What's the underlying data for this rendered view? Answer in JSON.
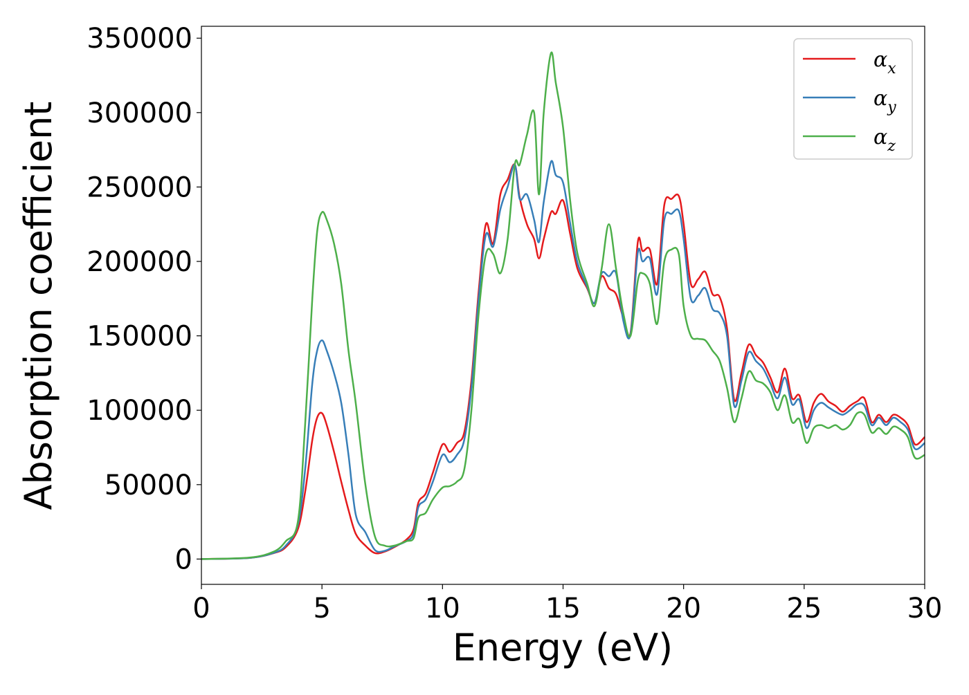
{
  "chart_data": {
    "type": "line",
    "xlabel": "Energy (eV)",
    "ylabel": "Absorption coefficient",
    "xlim": [
      0,
      30
    ],
    "ylim": [
      -17000,
      358000
    ],
    "xticks": [
      0,
      5,
      10,
      15,
      20,
      25,
      30
    ],
    "yticks": [
      0,
      50000,
      100000,
      150000,
      200000,
      250000,
      300000,
      350000
    ],
    "grid": false,
    "legend_position": "top-right",
    "series": [
      {
        "name": "α",
        "subscript": "x",
        "color": "#e41a1c",
        "x": [
          0,
          2,
          3,
          3.5,
          4,
          4.3,
          4.6,
          4.8,
          5.0,
          5.2,
          5.5,
          5.8,
          6.1,
          6.4,
          6.8,
          7.2,
          7.6,
          8.0,
          8.5,
          8.8,
          9.0,
          9.3,
          9.6,
          10.0,
          10.3,
          10.6,
          10.9,
          11.2,
          11.5,
          11.8,
          12.1,
          12.4,
          12.7,
          13.0,
          13.2,
          13.5,
          13.8,
          14.0,
          14.2,
          14.5,
          14.7,
          15.0,
          15.3,
          15.6,
          16.0,
          16.3,
          16.6,
          16.9,
          17.2,
          17.5,
          17.8,
          18.1,
          18.3,
          18.6,
          18.9,
          19.2,
          19.5,
          19.8,
          20.0,
          20.3,
          20.6,
          20.9,
          21.2,
          21.5,
          21.8,
          22.1,
          22.4,
          22.7,
          23.0,
          23.3,
          23.6,
          23.9,
          24.2,
          24.5,
          24.8,
          25.1,
          25.4,
          25.7,
          26.0,
          26.3,
          26.6,
          26.9,
          27.2,
          27.5,
          27.8,
          28.1,
          28.4,
          28.7,
          29.0,
          29.3,
          29.6,
          30.0
        ],
        "y": [
          0,
          800,
          4000,
          8000,
          20000,
          45000,
          80000,
          95000,
          98000,
          90000,
          72000,
          52000,
          33000,
          17000,
          9000,
          4000,
          5000,
          8000,
          13000,
          20000,
          38000,
          44000,
          58000,
          77000,
          72000,
          78000,
          85000,
          120000,
          180000,
          225000,
          212000,
          245000,
          255000,
          265000,
          243000,
          225000,
          215000,
          202000,
          215000,
          233000,
          232000,
          241000,
          218000,
          195000,
          182000,
          172000,
          190000,
          182000,
          178000,
          162000,
          152000,
          213000,
          207000,
          208000,
          185000,
          238000,
          242000,
          244000,
          225000,
          185000,
          188000,
          193000,
          178000,
          176000,
          155000,
          107000,
          125000,
          144000,
          137000,
          132000,
          122000,
          112000,
          128000,
          108000,
          110000,
          92000,
          105000,
          111000,
          106000,
          103000,
          99000,
          103000,
          106000,
          108000,
          92000,
          97000,
          92000,
          97000,
          95000,
          90000,
          77000,
          82000
        ]
      },
      {
        "name": "α",
        "subscript": "y",
        "color": "#377eb8",
        "x": [
          0,
          2,
          3,
          3.5,
          4,
          4.3,
          4.6,
          4.8,
          5.0,
          5.2,
          5.5,
          5.8,
          6.1,
          6.4,
          6.8,
          7.2,
          7.6,
          8.0,
          8.5,
          8.8,
          9.0,
          9.3,
          9.6,
          10.0,
          10.3,
          10.6,
          10.9,
          11.2,
          11.5,
          11.8,
          12.1,
          12.4,
          12.7,
          13.0,
          13.2,
          13.5,
          13.8,
          14.0,
          14.2,
          14.5,
          14.7,
          15.0,
          15.3,
          15.6,
          16.0,
          16.3,
          16.6,
          16.9,
          17.2,
          17.5,
          17.8,
          18.1,
          18.3,
          18.6,
          18.9,
          19.2,
          19.5,
          19.8,
          20.0,
          20.3,
          20.6,
          20.9,
          21.2,
          21.5,
          21.8,
          22.1,
          22.4,
          22.7,
          23.0,
          23.3,
          23.6,
          23.9,
          24.2,
          24.5,
          24.8,
          25.1,
          25.4,
          25.7,
          26.0,
          26.3,
          26.6,
          26.9,
          27.2,
          27.5,
          27.8,
          28.1,
          28.4,
          28.7,
          29.0,
          29.3,
          29.6,
          30.0
        ],
        "y": [
          0,
          800,
          4200,
          9000,
          23000,
          60000,
          118000,
          140000,
          147000,
          140000,
          125000,
          105000,
          70000,
          30000,
          18000,
          6000,
          5500,
          8500,
          12000,
          17000,
          35000,
          40000,
          52000,
          70000,
          65000,
          70000,
          80000,
          115000,
          175000,
          218000,
          210000,
          235000,
          250000,
          265000,
          242000,
          245000,
          228000,
          213000,
          240000,
          267000,
          258000,
          253000,
          225000,
          199000,
          183000,
          172000,
          192000,
          190000,
          192000,
          160000,
          151000,
          206000,
          200000,
          202000,
          178000,
          228000,
          232000,
          234000,
          215000,
          175000,
          177000,
          182000,
          168000,
          165000,
          150000,
          103000,
          120000,
          139000,
          133000,
          128000,
          118000,
          108000,
          122000,
          104000,
          107000,
          88000,
          100000,
          105000,
          102000,
          99000,
          97000,
          100000,
          104000,
          103000,
          90000,
          95000,
          90000,
          95000,
          92000,
          87000,
          74000,
          78000
        ]
      },
      {
        "name": "α",
        "subscript": "z",
        "color": "#4daf4a",
        "x": [
          0,
          2,
          3,
          3.5,
          4,
          4.3,
          4.6,
          4.8,
          5.0,
          5.2,
          5.5,
          5.8,
          6.1,
          6.4,
          6.8,
          7.2,
          7.6,
          8.0,
          8.5,
          8.8,
          9.0,
          9.3,
          9.6,
          10.0,
          10.3,
          10.6,
          10.9,
          11.2,
          11.5,
          11.8,
          12.1,
          12.4,
          12.7,
          13.0,
          13.2,
          13.5,
          13.8,
          14.0,
          14.2,
          14.5,
          14.7,
          15.0,
          15.3,
          15.6,
          16.0,
          16.3,
          16.6,
          16.9,
          17.2,
          17.5,
          17.8,
          18.1,
          18.3,
          18.6,
          18.9,
          19.2,
          19.5,
          19.8,
          20.0,
          20.3,
          20.6,
          20.9,
          21.2,
          21.5,
          21.8,
          22.1,
          22.4,
          22.7,
          23.0,
          23.3,
          23.6,
          23.9,
          24.2,
          24.5,
          24.8,
          25.1,
          25.4,
          25.7,
          26.0,
          26.3,
          26.6,
          26.9,
          27.2,
          27.5,
          27.8,
          28.1,
          28.4,
          28.7,
          29.0,
          29.3,
          29.6,
          30.0
        ],
        "y": [
          0,
          1000,
          5000,
          12000,
          25000,
          90000,
          175000,
          220000,
          233000,
          228000,
          212000,
          185000,
          140000,
          105000,
          50000,
          15000,
          9000,
          9000,
          12000,
          14000,
          28000,
          31000,
          40000,
          48000,
          49000,
          52000,
          60000,
          100000,
          165000,
          205000,
          205000,
          192000,
          215000,
          265000,
          265000,
          285000,
          300000,
          245000,
          300000,
          340000,
          320000,
          290000,
          240000,
          205000,
          185000,
          170000,
          195000,
          225000,
          195000,
          165000,
          150000,
          187000,
          192000,
          185000,
          158000,
          200000,
          208000,
          205000,
          170000,
          150000,
          148000,
          147000,
          140000,
          133000,
          115000,
          92000,
          108000,
          126000,
          120000,
          118000,
          112000,
          100000,
          110000,
          92000,
          94000,
          78000,
          88000,
          90000,
          88000,
          90000,
          87000,
          90000,
          98000,
          97000,
          85000,
          88000,
          84000,
          89000,
          87000,
          82000,
          68000,
          70000
        ]
      }
    ]
  }
}
